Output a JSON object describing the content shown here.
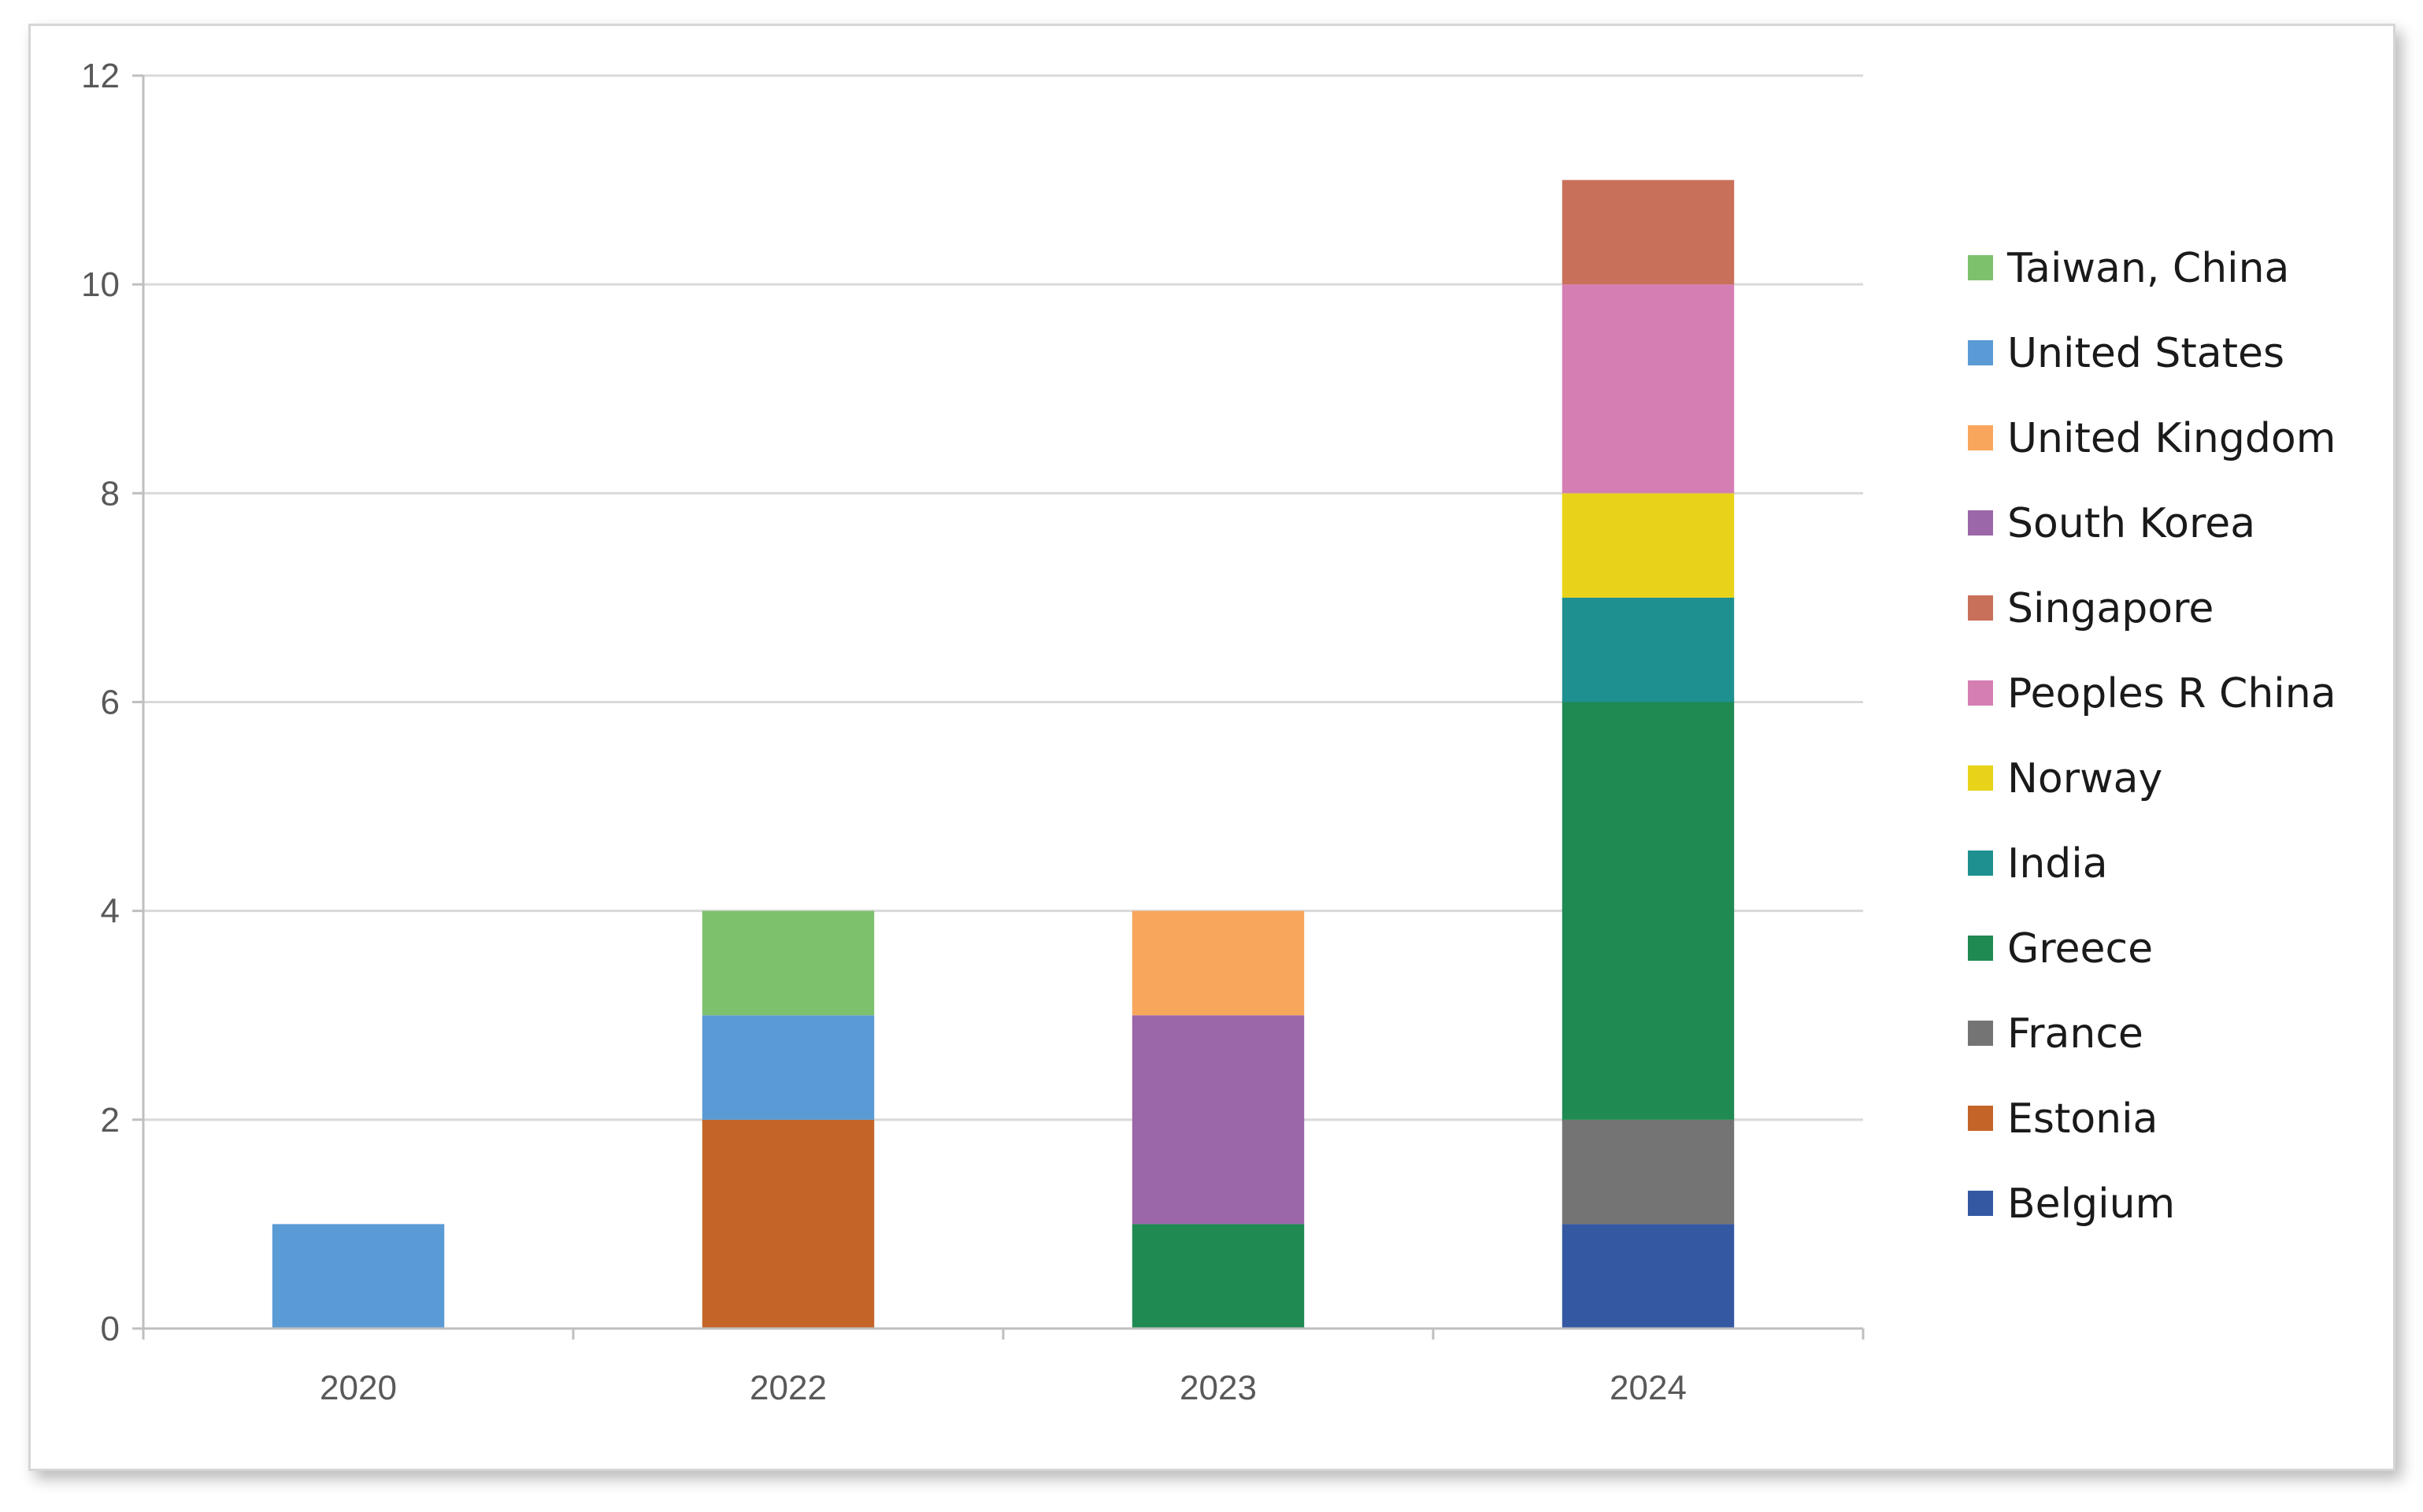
{
  "chart_data": {
    "type": "bar",
    "stacked": true,
    "categories": [
      "2020",
      "2022",
      "2023",
      "2024"
    ],
    "ylim": [
      0,
      12
    ],
    "yticks": [
      0,
      2,
      4,
      6,
      8,
      10,
      12
    ],
    "grid": true,
    "legend_position": "right",
    "series": [
      {
        "name": "Belgium",
        "color": "#3558a3",
        "values": [
          0,
          0,
          0,
          1
        ]
      },
      {
        "name": "Estonia",
        "color": "#c46428",
        "values": [
          0,
          2,
          0,
          0
        ]
      },
      {
        "name": "France",
        "color": "#747474",
        "values": [
          0,
          0,
          0,
          1
        ]
      },
      {
        "name": "Greece",
        "color": "#1f8a52",
        "values": [
          0,
          0,
          1,
          4
        ]
      },
      {
        "name": "India",
        "color": "#1e9090",
        "values": [
          0,
          0,
          0,
          1
        ]
      },
      {
        "name": "Norway",
        "color": "#e8d31a",
        "values": [
          0,
          0,
          0,
          1
        ]
      },
      {
        "name": "Peoples R China",
        "color": "#d57eb4",
        "values": [
          0,
          0,
          0,
          2
        ]
      },
      {
        "name": "Singapore",
        "color": "#c9705a",
        "values": [
          0,
          0,
          0,
          1
        ]
      },
      {
        "name": "South Korea",
        "color": "#9b67a8",
        "values": [
          0,
          0,
          2,
          0
        ]
      },
      {
        "name": "United Kingdom",
        "color": "#f8a65c",
        "values": [
          0,
          0,
          1,
          0
        ]
      },
      {
        "name": "United States",
        "color": "#5b9bd5",
        "values": [
          1,
          1,
          0,
          0
        ]
      },
      {
        "name": "Taiwan, China",
        "color": "#7ec16d",
        "values": [
          0,
          1,
          0,
          0
        ]
      }
    ]
  }
}
